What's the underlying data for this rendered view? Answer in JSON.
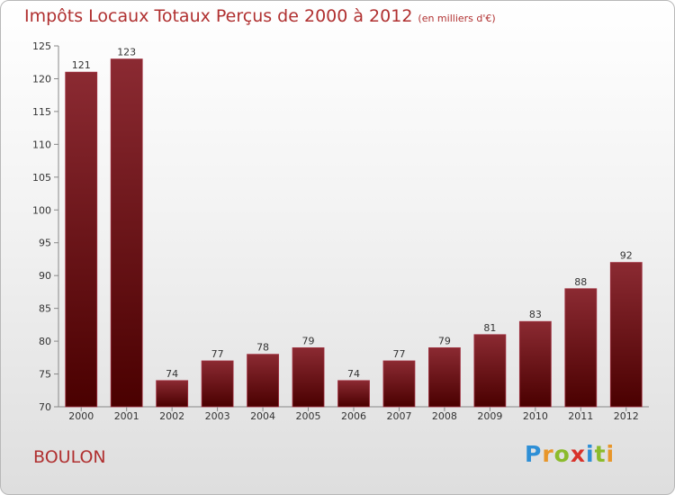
{
  "chart_data": {
    "type": "bar",
    "title": "Impôts Locaux Totaux Perçus de 2000 à 2012",
    "unit_label": "(en milliers d'€)",
    "categories": [
      "2000",
      "2001",
      "2002",
      "2003",
      "2004",
      "2005",
      "2006",
      "2007",
      "2008",
      "2009",
      "2010",
      "2011",
      "2012"
    ],
    "values": [
      121,
      123,
      74,
      77,
      78,
      79,
      74,
      77,
      79,
      81,
      83,
      88,
      92
    ],
    "ylim": [
      70,
      125
    ],
    "yticks": [
      70,
      75,
      80,
      85,
      90,
      95,
      100,
      105,
      110,
      115,
      120,
      125
    ],
    "xlabel": "",
    "ylabel": "",
    "bar_color_top": "#8b2a32",
    "bar_color_bottom": "#4a0000",
    "grid": false
  },
  "footer": {
    "town": "BOULON",
    "logo_letters": [
      "P",
      "r",
      "o",
      "x",
      "i",
      "t",
      "i"
    ],
    "logo_colors": [
      "#2e8fd6",
      "#e8962a",
      "#8bbb2c",
      "#d8322a",
      "#2e8fd6",
      "#8bbb2c",
      "#e8962a"
    ]
  },
  "text_color": "#b03030"
}
